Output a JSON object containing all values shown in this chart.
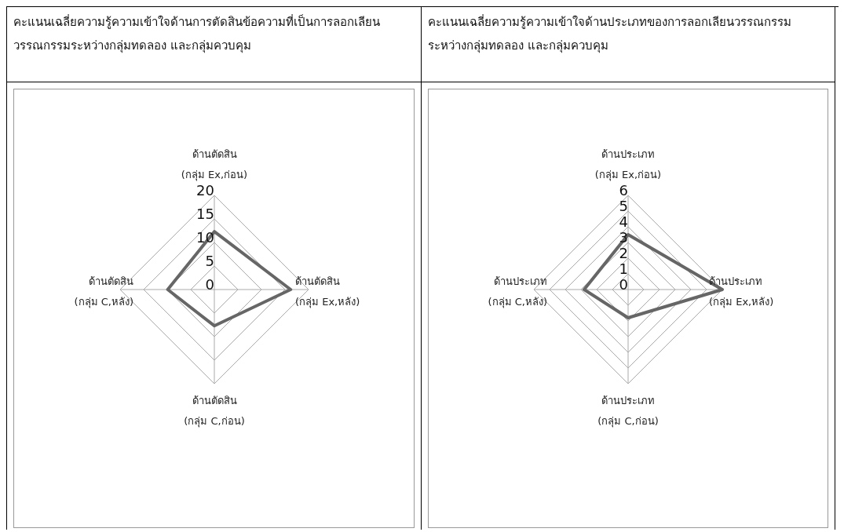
{
  "chart_data": [
    {
      "type": "radar",
      "title": "คะแนนเฉลี่ยความรู้ความเข้าใจด้านการตัดสินข้อความที่เป็นการลอกเลียนวรรณกรรมระหว่างกลุ่มทดลอง และกลุ่มควบคุม",
      "categories": [
        "ด้านตัดสิน (กลุ่ม Ex,ก่อน)",
        "ด้านตัดสิน (กลุ่ม Ex,หลัง)",
        "ด้านตัดสิน (กลุ่ม C,ก่อน)",
        "ด้านตัดสิน (กลุ่ม C,หลัง)"
      ],
      "series": [
        {
          "color": "#666666",
          "values": [
            12.3,
            16.2,
            7.7,
            9.9
          ]
        }
      ],
      "ylim": [
        0,
        20
      ],
      "yticks": [
        0,
        5,
        10,
        15,
        20
      ],
      "grid": true,
      "marker": "none"
    },
    {
      "type": "radar",
      "title": "คะแนนเฉลี่ยความรู้ความเข้าใจด้านประเภทของการลอกเลียนวรรณกรรมระหว่างกลุ่มทดลอง และกลุ่มควบคุม",
      "categories": [
        "ด้านประเภท (กลุ่ม Ex,ก่อน)",
        "ด้านประเภท (กลุ่ม Ex,หลัง)",
        "ด้านประเภท (กลุ่ม C,ก่อน)",
        "ด้านประเภท (กลุ่ม C,หลัง)"
      ],
      "series": [
        {
          "color": "#666666",
          "values": [
            3.5,
            6,
            1.8,
            2.8
          ]
        }
      ],
      "ylim": [
        0,
        6
      ],
      "yticks": [
        0,
        1,
        2,
        3,
        4,
        5,
        6
      ],
      "grid": true,
      "marker": "none"
    }
  ]
}
